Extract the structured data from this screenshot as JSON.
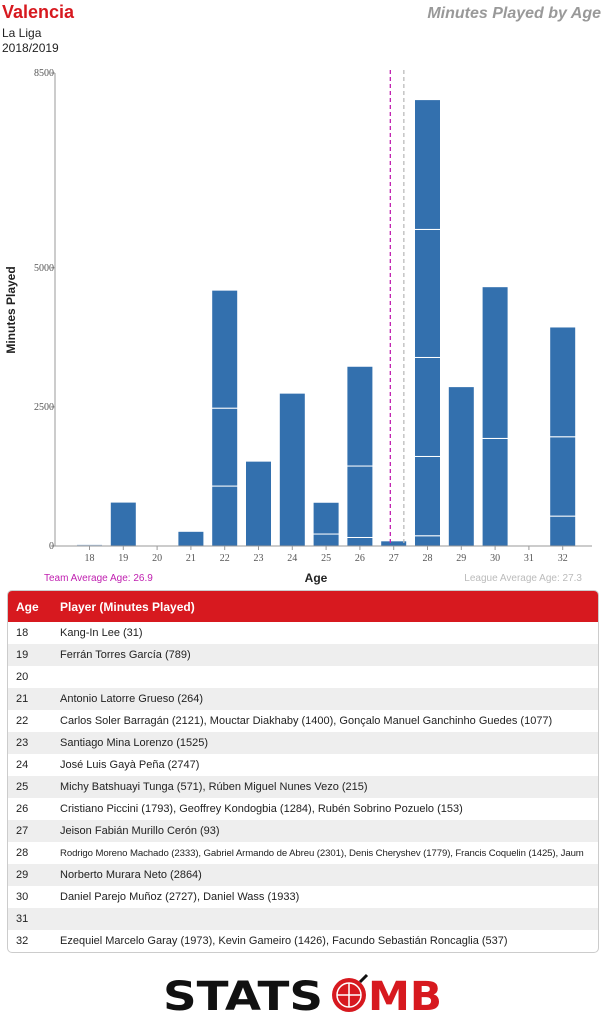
{
  "header": {
    "team": "Valencia",
    "league": "La Liga",
    "season": "2018/2019",
    "title": "Minutes Played by Age"
  },
  "colors": {
    "bar": "#3370ae",
    "accent": "#d7191f",
    "team_avg_line": "#c020b0",
    "league_avg_line": "#bbbbbb"
  },
  "chart_data": {
    "type": "bar",
    "stacked": true,
    "xlabel": "Age",
    "ylabel": "Minutes Played",
    "ylim": [
      0,
      8500
    ],
    "yticks": [
      0,
      2500,
      5000,
      8500
    ],
    "categories": [
      "18",
      "19",
      "20",
      "21",
      "22",
      "23",
      "24",
      "25",
      "26",
      "27",
      "28",
      "29",
      "30",
      "31",
      "32"
    ],
    "stacks": [
      [
        31
      ],
      [
        789
      ],
      [],
      [
        264
      ],
      [
        1077,
        1400,
        2121
      ],
      [
        1525
      ],
      [
        2747
      ],
      [
        215,
        571
      ],
      [
        153,
        1284,
        1793
      ],
      [
        93
      ],
      [
        184,
        1425,
        1779,
        2301,
        2333
      ],
      [
        2864
      ],
      [
        1933,
        2727
      ],
      [],
      [
        537,
        1426,
        1973
      ]
    ],
    "team_average_age": 26.9,
    "league_average_age": 27.3,
    "team_average_label": "Team Average Age: 26.9",
    "league_average_label": "League Average Age: 27.3"
  },
  "table": {
    "headers": [
      "Age",
      "Player (Minutes Played)"
    ],
    "rows": [
      {
        "age": "18",
        "players": "Kang-In Lee (31)"
      },
      {
        "age": "19",
        "players": "Ferrán Torres García (789)"
      },
      {
        "age": "20",
        "players": ""
      },
      {
        "age": "21",
        "players": "Antonio Latorre Grueso (264)"
      },
      {
        "age": "22",
        "players": "Carlos Soler Barragán (2121), Mouctar Diakhaby (1400), Gonçalo Manuel Ganchinho Guedes (1077)"
      },
      {
        "age": "23",
        "players": "Santiago Mina Lorenzo (1525)"
      },
      {
        "age": "24",
        "players": "José Luis Gayà Peña (2747)"
      },
      {
        "age": "25",
        "players": "Michy Batshuayi Tunga (571), Rúben Miguel Nunes Vezo (215)"
      },
      {
        "age": "26",
        "players": "Cristiano Piccini (1793), Geoffrey Kondogbia (1284), Rubén Sobrino Pozuelo (153)"
      },
      {
        "age": "27",
        "players": "Jeison Fabián Murillo Cerón (93)"
      },
      {
        "age": "28",
        "players": "Rodrigo Moreno Machado (2333), Gabriel Armando de Abreu (2301), Denis Cheryshev (1779), Francis Coquelin (1425), Jaum"
      },
      {
        "age": "29",
        "players": "Norberto Murara Neto (2864)"
      },
      {
        "age": "30",
        "players": "Daniel Parejo Muñoz (2727), Daniel Wass (1933)"
      },
      {
        "age": "31",
        "players": ""
      },
      {
        "age": "32",
        "players": "Ezequiel Marcelo Garay (1973), Kevin Gameiro (1426), Facundo Sebastián Roncaglia (537)"
      }
    ]
  },
  "logo": {
    "text_left": "STATS",
    "text_right": "MB",
    "full": "STATSBOMB"
  }
}
